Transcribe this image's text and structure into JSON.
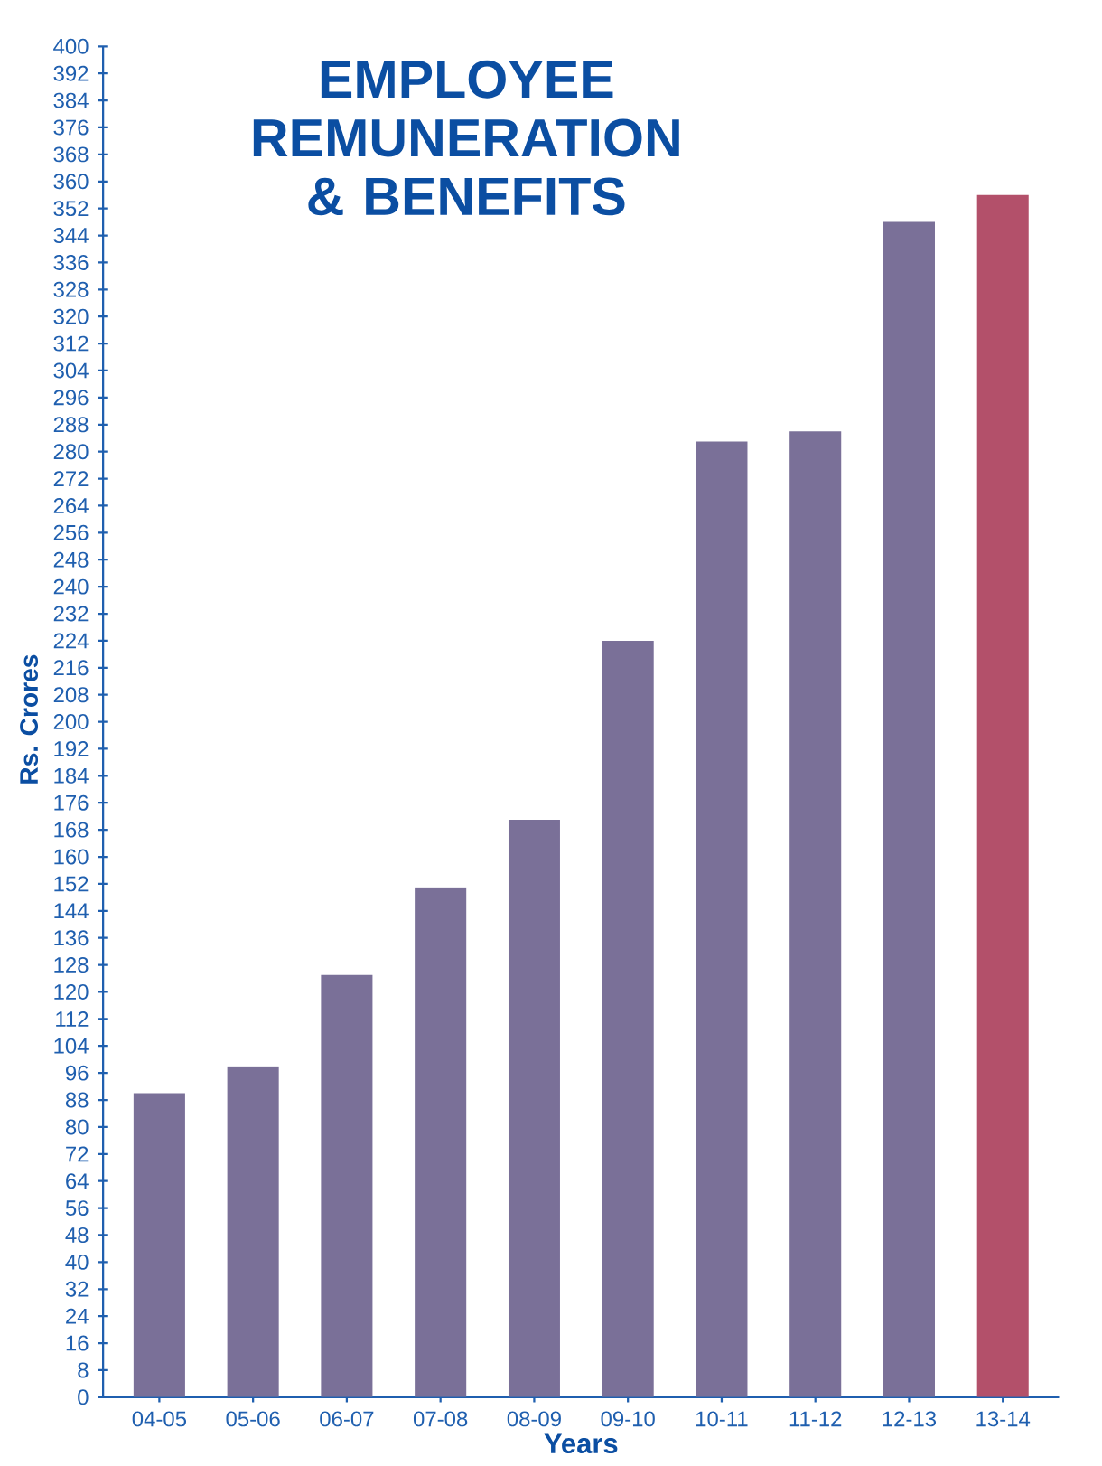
{
  "chart_data": {
    "type": "bar",
    "title": "EMPLOYEE REMUNERATION & BENEFITS",
    "xlabel": "Years",
    "ylabel": "Rs. Crores",
    "categories": [
      "04-05",
      "05-06",
      "06-07",
      "07-08",
      "08-09",
      "09-10",
      "10-11",
      "11-12",
      "12-13",
      "13-14"
    ],
    "values": [
      90,
      98,
      125,
      151,
      171,
      224,
      283,
      286,
      348,
      356
    ],
    "colors": [
      "#7a7098",
      "#7a7098",
      "#7a7098",
      "#7a7098",
      "#7a7098",
      "#7a7098",
      "#7a7098",
      "#7a7098",
      "#7a7098",
      "#b3506a"
    ],
    "ylim": [
      0,
      400
    ],
    "yticks": [
      0,
      8,
      16,
      24,
      32,
      40,
      48,
      56,
      64,
      72,
      80,
      88,
      96,
      104,
      112,
      120,
      128,
      136,
      144,
      152,
      160,
      168,
      176,
      184,
      192,
      200,
      208,
      216,
      224,
      232,
      240,
      248,
      256,
      264,
      272,
      280,
      288,
      296,
      304,
      312,
      320,
      328,
      336,
      344,
      352,
      360,
      368,
      376,
      384,
      392,
      400
    ],
    "grid": false
  }
}
